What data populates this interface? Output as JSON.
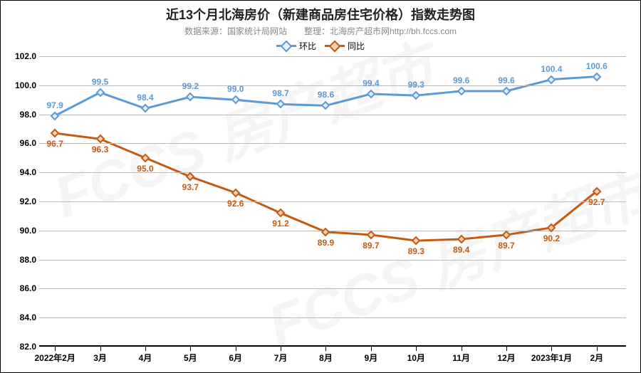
{
  "title": "近13个月北海房价（新建商品房住宅价格）指数走势图",
  "title_fontsize": 18,
  "subtitle": "数据来源：国家统计局网站　　整理：北海房产超市网http://bh.fccs.com",
  "subtitle_fontsize": 12,
  "legend": {
    "series1": {
      "label": "环比",
      "color": "#5b9bd5",
      "marker": "diamond"
    },
    "series2": {
      "label": "同比",
      "color": "#c55a11",
      "marker": "diamond"
    }
  },
  "chart": {
    "type": "line",
    "background_color": "#ffffff",
    "grid_color": "#bbbbbb",
    "ylim": [
      82.0,
      102.0
    ],
    "ytick_step": 2.0,
    "y_decimals": 1,
    "x_labels": [
      "2022年2月",
      "3月",
      "4月",
      "5月",
      "6月",
      "7月",
      "8月",
      "9月",
      "10月",
      "11月",
      "12月",
      "2023年1月",
      "2月"
    ],
    "series": [
      {
        "name": "环比",
        "color": "#5b9bd5",
        "marker_fill": "#e6f0fa",
        "line_width": 3,
        "marker_size": 9,
        "values": [
          97.9,
          99.5,
          98.4,
          99.2,
          99.0,
          98.7,
          98.6,
          99.4,
          99.3,
          99.6,
          99.6,
          100.4,
          100.6
        ],
        "label_color": "#5b9bd5",
        "label_position": "above"
      },
      {
        "name": "同比",
        "color": "#c55a11",
        "marker_fill": "#f4d0b5",
        "line_width": 3,
        "marker_size": 9,
        "values": [
          96.7,
          96.3,
          95.0,
          93.7,
          92.6,
          91.2,
          89.9,
          89.7,
          89.3,
          89.4,
          89.7,
          90.2,
          92.7
        ],
        "label_color": "#c55a11",
        "label_position": "below"
      }
    ]
  },
  "watermark": "FCCS 房产超市"
}
